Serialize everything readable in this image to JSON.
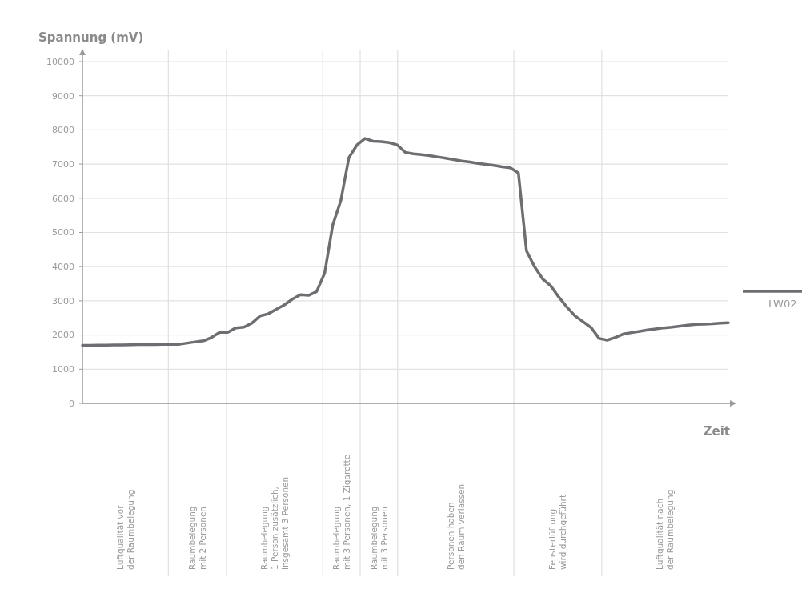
{
  "chart_data": {
    "type": "line",
    "ylabel": "Spannung (mV)",
    "xlabel": "Zeit",
    "ylim": [
      0,
      10000
    ],
    "categories": [
      null,
      null,
      null,
      null,
      null,
      null,
      null,
      null,
      null,
      null,
      null,
      null,
      null,
      null,
      null,
      null,
      null,
      null,
      null,
      null,
      null,
      null,
      null,
      null,
      null,
      null,
      null,
      null,
      null,
      null,
      null,
      null,
      null,
      null,
      null,
      null,
      null,
      null,
      null,
      null,
      null,
      null,
      null,
      null,
      null,
      null,
      null,
      null,
      null,
      null,
      null,
      null,
      null,
      null,
      null,
      null,
      null,
      null,
      null,
      null,
      null,
      null,
      null,
      null,
      null,
      null,
      null,
      null,
      null,
      null,
      null,
      null,
      null,
      null,
      null,
      null,
      null,
      null,
      null,
      null,
      null
    ],
    "yticks": [
      0,
      1000,
      2000,
      3000,
      4000,
      5000,
      6000,
      7000,
      8000,
      9000,
      10000
    ],
    "tick_labels": "y",
    "grid": "y",
    "legend": "right",
    "line_style": "solid",
    "marker": "none",
    "series": [
      {
        "name": "LW02",
        "color": "#6d6e71",
        "values": [
          1700,
          1700,
          1705,
          1705,
          1710,
          1710,
          1715,
          1720,
          1720,
          1720,
          1725,
          1730,
          1730,
          1765,
          1800,
          1830,
          1930,
          2080,
          2080,
          2210,
          2230,
          2350,
          2560,
          2620,
          2750,
          2880,
          3050,
          3180,
          3160,
          3270,
          3810,
          5220,
          5930,
          7190,
          7560,
          7750,
          7670,
          7660,
          7630,
          7560,
          7340,
          7300,
          7280,
          7250,
          7210,
          7170,
          7130,
          7090,
          7060,
          7020,
          6990,
          6960,
          6920,
          6890,
          6740,
          4460,
          4000,
          3640,
          3440,
          3110,
          2820,
          2560,
          2390,
          2220,
          1900,
          1850,
          1930,
          2030,
          2070,
          2110,
          2150,
          2180,
          2210,
          2230,
          2260,
          2290,
          2310,
          2320,
          2330,
          2350,
          2360
        ]
      }
    ],
    "annotations": [
      "Luftqualität vor\nder Raumbelegung",
      "Raumbelegung\nmit 2 Personen",
      "Raumbelegung\n1 Person zusätzlich,\ninsgesamt 3 Personen",
      "Raumbelegung\nmit 3 Personen, 1 Zigarette",
      "Raumbelegung\nmit 3 Personen",
      "Personen haben\nden Raum verlassen",
      "Fensterlüftung\nwird durchgeführt",
      "Luftqualität nach\nder Raumbelegung"
    ]
  }
}
